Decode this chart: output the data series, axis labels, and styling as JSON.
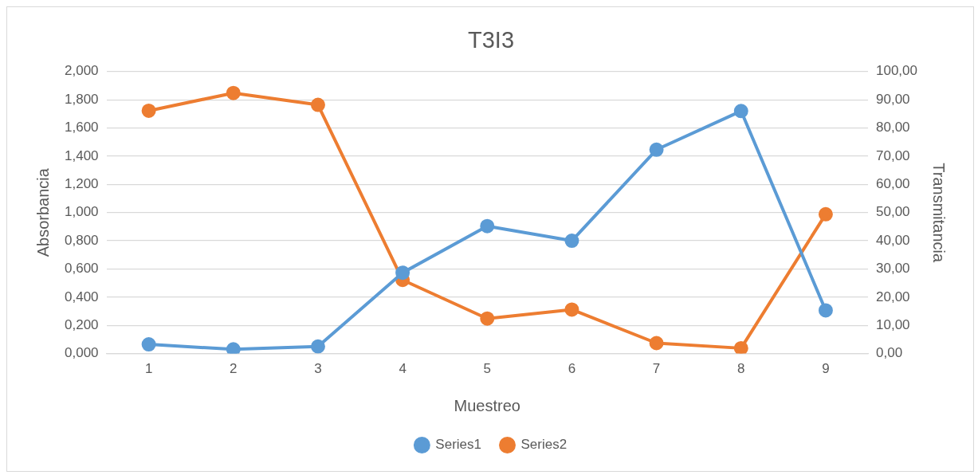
{
  "chart_data": {
    "type": "line",
    "title": "T3I3",
    "xlabel": "Muestreo",
    "ylabel": "Absorbancia",
    "y2label": "Transmitancia",
    "categories": [
      "1",
      "2",
      "3",
      "4",
      "5",
      "6",
      "7",
      "8",
      "9"
    ],
    "series": [
      {
        "name": "Series1",
        "color": "#5b9bd5",
        "values": [
          0.065,
          0.03,
          0.05,
          0.573,
          0.904,
          0.8,
          1.446,
          1.72,
          0.306
        ]
      },
      {
        "name": "Series2",
        "color": "#ed7d31",
        "axis": "y2",
        "values": [
          86.1,
          92.4,
          88.2,
          26.1,
          12.4,
          15.6,
          3.7,
          1.9,
          49.4
        ]
      }
    ],
    "ylim": [
      0,
      2
    ],
    "yticks": [
      {
        "value": 0,
        "label": "0,000"
      },
      {
        "value": 0.2,
        "label": "0,200"
      },
      {
        "value": 0.4,
        "label": "0,400"
      },
      {
        "value": 0.6,
        "label": "0,600"
      },
      {
        "value": 0.8,
        "label": "0,800"
      },
      {
        "value": 1,
        "label": "1,000"
      },
      {
        "value": 1.2,
        "label": "1,200"
      },
      {
        "value": 1.4,
        "label": "1,400"
      },
      {
        "value": 1.6,
        "label": "1,600"
      },
      {
        "value": 1.8,
        "label": "1,800"
      },
      {
        "value": 2,
        "label": "2,000"
      }
    ],
    "y2lim": [
      0,
      100
    ],
    "y2ticks": [
      {
        "value": 0,
        "label": "0,00"
      },
      {
        "value": 10,
        "label": "10,00"
      },
      {
        "value": 20,
        "label": "20,00"
      },
      {
        "value": 30,
        "label": "30,00"
      },
      {
        "value": 40,
        "label": "40,00"
      },
      {
        "value": 50,
        "label": "50,00"
      },
      {
        "value": 60,
        "label": "60,00"
      },
      {
        "value": 70,
        "label": "70,00"
      },
      {
        "value": 80,
        "label": "80,00"
      },
      {
        "value": 90,
        "label": "90,00"
      },
      {
        "value": 100,
        "label": "100,00"
      }
    ],
    "grid": "y",
    "legend": "bottom",
    "marker": "circle",
    "line_style": "solid"
  }
}
